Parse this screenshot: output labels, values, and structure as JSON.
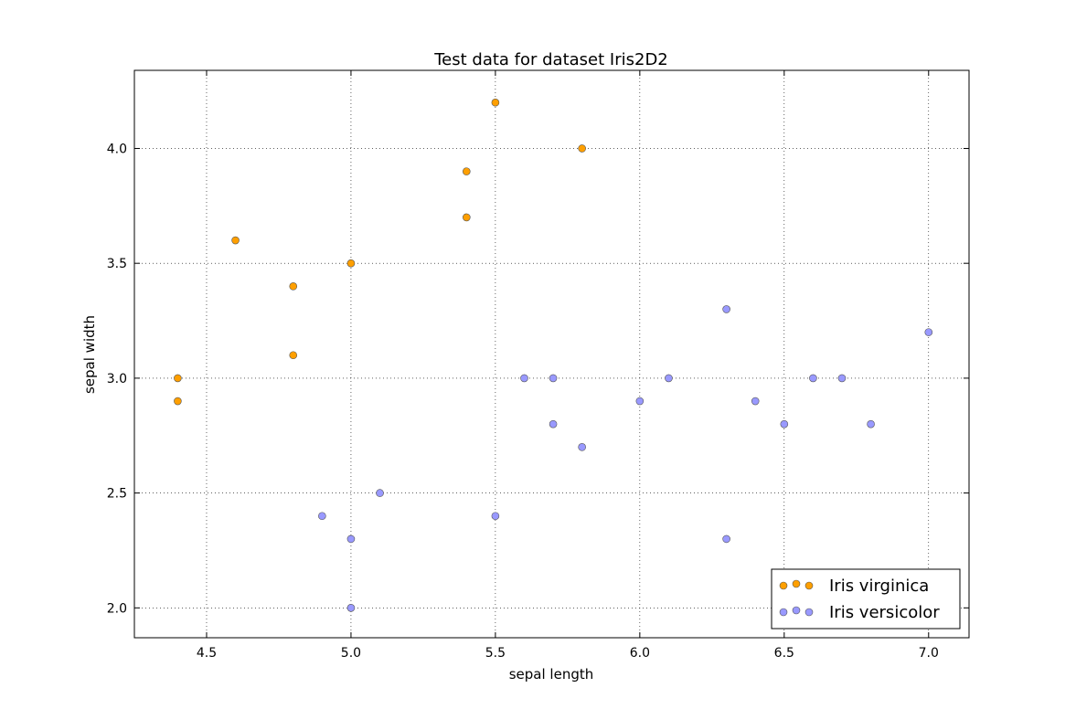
{
  "chart_data": {
    "type": "scatter",
    "title": "Test data for dataset Iris2D2",
    "xlabel": "sepal length",
    "ylabel": "sepal width",
    "xlim": [
      4.25,
      7.14
    ],
    "ylim": [
      1.87,
      4.34
    ],
    "xticks": [
      "4.5",
      "5.0",
      "5.5",
      "6.0",
      "6.5",
      "7.0"
    ],
    "yticks": [
      "2.0",
      "2.5",
      "3.0",
      "3.5",
      "4.0"
    ],
    "grid": true,
    "legend_position": "bottom-right",
    "series": [
      {
        "name": "Iris virginica",
        "color": "#ff9f00",
        "points": [
          [
            4.4,
            3.0
          ],
          [
            4.4,
            2.9
          ],
          [
            4.6,
            3.6
          ],
          [
            4.8,
            3.4
          ],
          [
            4.8,
            3.1
          ],
          [
            5.0,
            3.5
          ],
          [
            5.4,
            3.9
          ],
          [
            5.4,
            3.7
          ],
          [
            5.5,
            4.2
          ],
          [
            5.8,
            4.0
          ]
        ]
      },
      {
        "name": "Iris versicolor",
        "color": "#9999ff",
        "points": [
          [
            4.9,
            2.4
          ],
          [
            5.0,
            2.3
          ],
          [
            5.0,
            2.0
          ],
          [
            5.1,
            2.5
          ],
          [
            5.5,
            2.4
          ],
          [
            5.6,
            3.0
          ],
          [
            5.7,
            3.0
          ],
          [
            5.7,
            2.8
          ],
          [
            5.8,
            2.7
          ],
          [
            6.0,
            2.9
          ],
          [
            6.1,
            3.0
          ],
          [
            6.3,
            3.3
          ],
          [
            6.3,
            2.3
          ],
          [
            6.4,
            2.9
          ],
          [
            6.5,
            2.8
          ],
          [
            6.6,
            3.0
          ],
          [
            6.7,
            3.0
          ],
          [
            6.8,
            2.8
          ],
          [
            7.0,
            3.2
          ]
        ]
      }
    ]
  }
}
